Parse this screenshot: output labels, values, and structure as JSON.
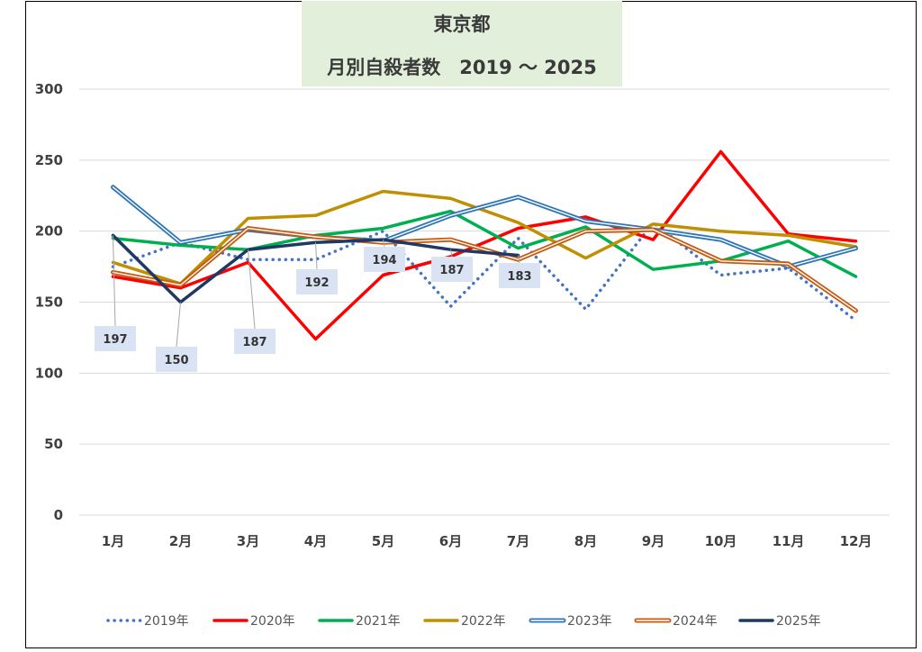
{
  "chart_data": {
    "type": "line",
    "title": "東京都",
    "subtitle": "月別自殺者数　2019 ～ 2025",
    "categories": [
      "1月",
      "2月",
      "3月",
      "4月",
      "5月",
      "6月",
      "7月",
      "8月",
      "9月",
      "10月",
      "11月",
      "12月"
    ],
    "ylim": [
      0,
      300
    ],
    "yticks": [
      "0",
      "50",
      "100",
      "150",
      "200",
      "250",
      "300"
    ],
    "grid": true,
    "legend_position": "bottom",
    "series": [
      {
        "name": "2019年",
        "color": "#4472c4",
        "style": "dotted",
        "values": [
          175,
          192,
          180,
          180,
          200,
          147,
          195,
          145,
          206,
          169,
          174,
          137
        ]
      },
      {
        "name": "2020年",
        "color": "#ff0000",
        "style": "solid",
        "values": [
          168,
          160,
          178,
          124,
          169,
          182,
          202,
          210,
          194,
          256,
          198,
          193
        ]
      },
      {
        "name": "2021年",
        "color": "#00b050",
        "style": "solid",
        "values": [
          195,
          190,
          187,
          197,
          202,
          214,
          188,
          203,
          173,
          179,
          193,
          168
        ]
      },
      {
        "name": "2022年",
        "color": "#bf9000",
        "style": "solid",
        "values": [
          178,
          163,
          209,
          211,
          228,
          223,
          206,
          181,
          205,
          200,
          197,
          189
        ]
      },
      {
        "name": "2023年",
        "color": "#2e75b6",
        "style": "double",
        "values": [
          231,
          192,
          201,
          196,
          193,
          211,
          224,
          207,
          201,
          194,
          175,
          188
        ]
      },
      {
        "name": "2024年",
        "color": "#c55a11",
        "style": "double",
        "values": [
          171,
          162,
          202,
          196,
          192,
          194,
          180,
          200,
          201,
          179,
          177,
          144
        ]
      },
      {
        "name": "2025年",
        "color": "#1f3864",
        "style": "solid",
        "values": [
          197,
          150,
          187,
          192,
          194,
          187,
          183,
          null,
          null,
          null,
          null,
          null
        ]
      }
    ],
    "data_labels": {
      "series": "2025年",
      "values": [
        "197",
        "150",
        "187",
        "192",
        "194",
        "187",
        "183"
      ]
    }
  }
}
